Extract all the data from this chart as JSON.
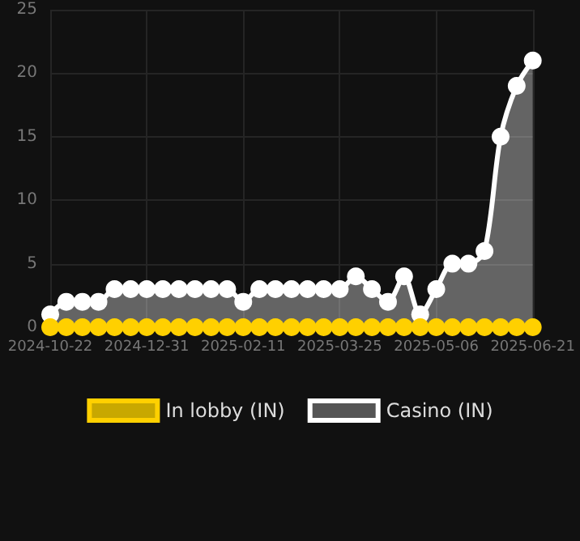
{
  "chart_data": {
    "type": "area",
    "categories": [
      "2024-10-22",
      null,
      null,
      null,
      null,
      null,
      "2024-12-31",
      null,
      null,
      null,
      null,
      null,
      "2025-02-11",
      null,
      null,
      null,
      null,
      null,
      "2025-03-25",
      null,
      null,
      null,
      null,
      null,
      "2025-05-06",
      null,
      null,
      null,
      null,
      null,
      "2025-06-21"
    ],
    "series": [
      {
        "name": "In lobby (IN)",
        "color": "#ffd000",
        "type": "line",
        "values": [
          0,
          0,
          0,
          0,
          0,
          0,
          0,
          0,
          0,
          0,
          0,
          0,
          0,
          0,
          0,
          0,
          0,
          0,
          0,
          0,
          0,
          0,
          0,
          0,
          0,
          0,
          0,
          0,
          0,
          0,
          0
        ]
      },
      {
        "name": "Casino (IN)",
        "color": "#ffffff",
        "values": [
          1,
          2,
          2,
          2,
          3,
          3,
          3,
          3,
          3,
          3,
          3,
          3,
          2,
          3,
          3,
          3,
          3,
          3,
          3,
          4,
          3,
          2,
          4,
          1,
          3,
          5,
          5,
          6,
          15,
          19,
          21
        ]
      }
    ],
    "ylim": [
      0,
      25
    ],
    "yticks": [
      0,
      5,
      10,
      15,
      20,
      25
    ],
    "grid": true,
    "legend": "bottom",
    "marker": "circle"
  }
}
